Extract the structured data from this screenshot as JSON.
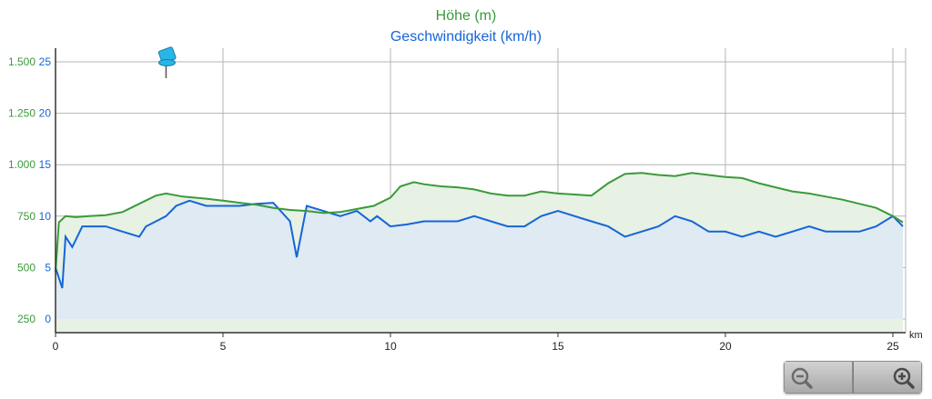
{
  "colors": {
    "elevation": "#3a9a3a",
    "elevation_fill": "#e7f1e4",
    "speed": "#1565d8",
    "speed_fill": "#dfeaf2",
    "grid": "#b4b4b4",
    "axis": "#333333",
    "pin": "#29b6e6"
  },
  "chart_data": {
    "type": "line",
    "title": "Höhe (m)",
    "subtitle": "Geschwindigkeit (km/h)",
    "xlabel": "km",
    "x_unit": "km",
    "xlim": [
      0,
      25.3
    ],
    "x_ticks": [
      "0",
      "5",
      "10",
      "15",
      "20",
      "25"
    ],
    "grid": true,
    "y_axes": [
      {
        "name": "Höhe (m)",
        "ticks": [
          "250",
          "500",
          "750",
          "1.000",
          "1.250",
          "1.500"
        ],
        "range": [
          250,
          1500
        ]
      },
      {
        "name": "Geschwindigkeit (km/h)",
        "ticks": [
          "0",
          "5",
          "10",
          "15",
          "20",
          "25"
        ],
        "range": [
          0,
          25
        ]
      }
    ],
    "marker": {
      "type": "pin-icon",
      "x": 3.3
    },
    "series": [
      {
        "name": "Höhe (m)",
        "axis": "left",
        "x": [
          0,
          0.1,
          0.3,
          0.6,
          1.0,
          1.5,
          2.0,
          2.5,
          3.0,
          3.3,
          3.8,
          4.5,
          5.0,
          5.5,
          6.0,
          6.5,
          7.0,
          7.5,
          8.0,
          8.5,
          9.0,
          9.5,
          10.0,
          10.3,
          10.7,
          11.0,
          11.5,
          12.0,
          12.5,
          13.0,
          13.5,
          14.0,
          14.5,
          15.0,
          15.5,
          16.0,
          16.5,
          17.0,
          17.5,
          18.0,
          18.5,
          19.0,
          19.5,
          20.0,
          20.5,
          21.0,
          21.5,
          22.0,
          22.5,
          23.0,
          23.5,
          24.0,
          24.5,
          25.0,
          25.3
        ],
        "values": [
          480,
          720,
          750,
          745,
          750,
          755,
          770,
          810,
          850,
          860,
          845,
          835,
          825,
          815,
          805,
          790,
          780,
          775,
          765,
          770,
          785,
          800,
          840,
          895,
          915,
          905,
          895,
          890,
          880,
          860,
          850,
          850,
          870,
          860,
          855,
          850,
          910,
          955,
          960,
          950,
          945,
          960,
          950,
          940,
          935,
          910,
          890,
          870,
          860,
          845,
          830,
          810,
          790,
          750,
          720
        ]
      },
      {
        "name": "Geschwindigkeit (km/h)",
        "axis": "right",
        "x": [
          0,
          0.2,
          0.3,
          0.5,
          0.8,
          1.0,
          1.5,
          2.0,
          2.5,
          2.7,
          3.0,
          3.3,
          3.6,
          4.0,
          4.5,
          5.0,
          5.5,
          6.0,
          6.5,
          7.0,
          7.2,
          7.5,
          8.0,
          8.5,
          9.0,
          9.4,
          9.6,
          10.0,
          10.5,
          11.0,
          11.5,
          12.0,
          12.5,
          13.0,
          13.5,
          14.0,
          14.5,
          15.0,
          15.5,
          16.0,
          16.5,
          17.0,
          17.5,
          18.0,
          18.5,
          19.0,
          19.5,
          20.0,
          20.5,
          21.0,
          21.5,
          22.0,
          22.5,
          23.0,
          23.5,
          24.0,
          24.5,
          25.0,
          25.3
        ],
        "values": [
          5,
          3,
          8,
          7,
          9,
          9,
          9,
          8.5,
          8,
          9,
          9.5,
          10,
          11,
          11.5,
          11,
          11,
          11,
          11.2,
          11.3,
          9.5,
          6,
          11,
          10.5,
          10,
          10.5,
          9.5,
          10,
          9,
          9.2,
          9.5,
          9.5,
          9.5,
          10,
          9.5,
          9,
          9,
          10,
          10.5,
          10,
          9.5,
          9,
          8,
          8.5,
          9,
          10,
          9.5,
          8.5,
          8.5,
          8,
          8.5,
          8,
          8.5,
          9,
          8.5,
          8.5,
          8.5,
          9,
          10,
          9
        ]
      }
    ]
  },
  "zoom": {
    "out_icon": "zoom-out-icon",
    "in_icon": "zoom-in-icon"
  }
}
